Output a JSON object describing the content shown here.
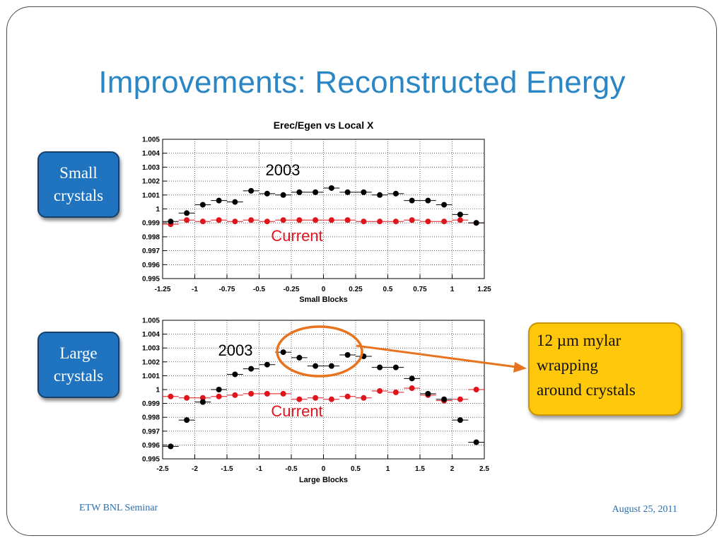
{
  "slide": {
    "title": "Improvements: Reconstructed Energy",
    "footer_left": "ETW BNL Seminar",
    "footer_right": "August 25, 2011",
    "label_small": [
      "Small",
      "crystals"
    ],
    "label_large": [
      "Large",
      "crystals"
    ],
    "callout": [
      "12 µm mylar",
      "wrapping",
      "around crystals"
    ]
  },
  "colors": {
    "title": "#2a86c4",
    "pill": "#1f73bf",
    "callout": "#ffc80a",
    "arrow": "#e8731e",
    "circle": "#e8731e",
    "series_2003": "#000000",
    "series_current": "#e0151c"
  },
  "chart_data": [
    {
      "type": "scatter",
      "title": "Erec/Egen vs Local X",
      "xlabel": "Small Blocks",
      "ylabel": "",
      "xlim": [
        -1.25,
        1.25
      ],
      "ylim": [
        0.995,
        1.005
      ],
      "xticks": [
        "-1.25",
        "-1",
        "-0.75",
        "-0.5",
        "-0.25",
        "0",
        "0.25",
        "0.5",
        "0.75",
        "1",
        "1.25"
      ],
      "yticks": [
        "0.995",
        "0.996",
        "0.997",
        "0.998",
        "0.999",
        "1",
        "1.001",
        "1.002",
        "1.003",
        "1.004",
        "1.005"
      ],
      "grid": true,
      "annotations": [
        "2003",
        "Current"
      ],
      "x": [
        -1.1875,
        -1.0625,
        -0.9375,
        -0.8125,
        -0.6875,
        -0.5625,
        -0.4375,
        -0.3125,
        -0.1875,
        -0.0625,
        0.0625,
        0.1875,
        0.3125,
        0.4375,
        0.5625,
        0.6875,
        0.8125,
        0.9375,
        1.0625,
        1.1875
      ],
      "series": [
        {
          "name": "2003",
          "values": [
            0.9991,
            0.9997,
            1.0003,
            1.0006,
            1.0005,
            1.0013,
            1.0011,
            1.001,
            1.0012,
            1.0012,
            1.0015,
            1.0012,
            1.0012,
            1.001,
            1.0011,
            1.0006,
            1.0006,
            1.0003,
            0.9996,
            0.999
          ]
        },
        {
          "name": "Current",
          "values": [
            0.9989,
            0.9992,
            0.9991,
            0.9992,
            0.9991,
            0.9992,
            0.9991,
            0.9992,
            0.9992,
            0.9992,
            0.9992,
            0.9992,
            0.9991,
            0.9991,
            0.9991,
            0.9992,
            0.9991,
            0.9991,
            0.9992,
            0.999
          ]
        }
      ]
    },
    {
      "type": "scatter",
      "title": "",
      "xlabel": "Large Blocks",
      "ylabel": "",
      "xlim": [
        -2.5,
        2.5
      ],
      "ylim": [
        0.995,
        1.005
      ],
      "xticks": [
        "-2.5",
        "-2",
        "-1.5",
        "-1",
        "-0.5",
        "0",
        "0.5",
        "1",
        "1.5",
        "2",
        "2.5"
      ],
      "yticks": [
        "0.995",
        "0.996",
        "0.997",
        "0.998",
        "0.999",
        "1",
        "1.001",
        "1.002",
        "1.003",
        "1.004",
        "1.005"
      ],
      "grid": true,
      "annotations": [
        "2003",
        "Current"
      ],
      "x": [
        -2.375,
        -2.125,
        -1.875,
        -1.625,
        -1.375,
        -1.125,
        -0.875,
        -0.625,
        -0.375,
        -0.125,
        0.125,
        0.375,
        0.625,
        0.875,
        1.125,
        1.375,
        1.625,
        1.875,
        2.125,
        2.375
      ],
      "series": [
        {
          "name": "2003",
          "values": [
            0.9959,
            0.9978,
            0.9991,
            1.0,
            1.0011,
            1.0015,
            1.0018,
            1.0027,
            1.0023,
            1.0017,
            1.0017,
            1.0025,
            1.0024,
            1.0016,
            1.0016,
            1.0008,
            0.9997,
            0.9993,
            0.9978,
            0.9962
          ]
        },
        {
          "name": "Current",
          "values": [
            0.9995,
            0.9994,
            0.9994,
            0.9995,
            0.9996,
            0.9997,
            0.9997,
            0.9997,
            0.9993,
            0.9994,
            0.9993,
            0.9995,
            0.9994,
            0.9999,
            0.9998,
            1.0001,
            0.9996,
            0.9992,
            0.9993,
            1.0
          ]
        }
      ]
    }
  ]
}
